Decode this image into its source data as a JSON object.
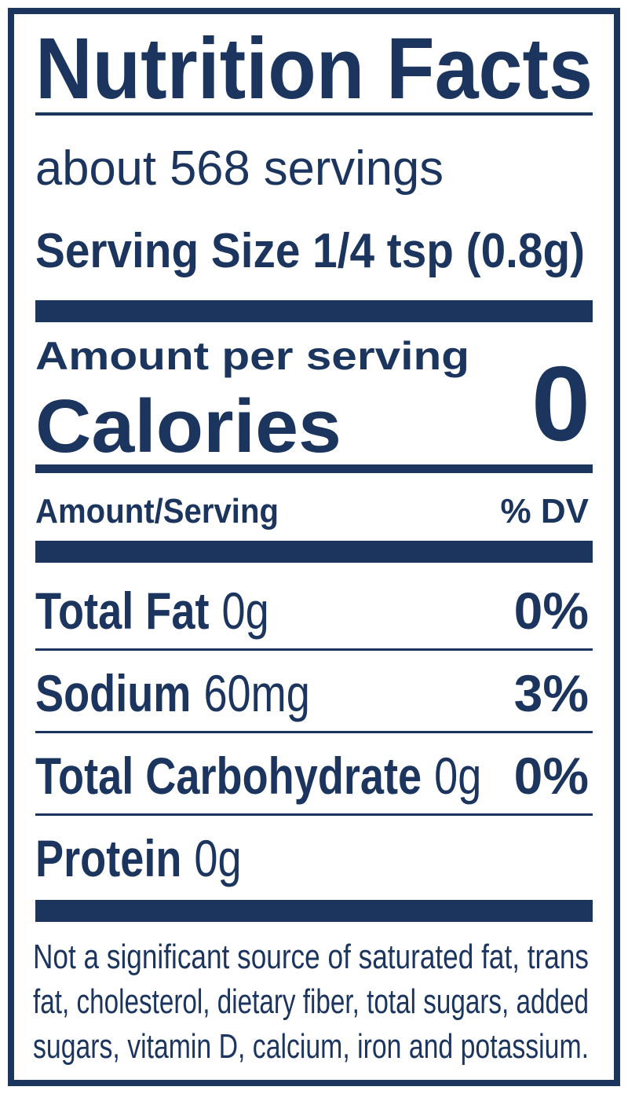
{
  "title": "Nutrition Facts",
  "servings": "about 568 servings",
  "serving_size": "Serving Size 1/4 tsp (0.8g)",
  "amount_per_serving": "Amount per serving",
  "calories": {
    "label": "Calories",
    "value": "0"
  },
  "columns": {
    "left": "Amount/Serving",
    "right": "% DV"
  },
  "nutrients": [
    {
      "name": "Total Fat",
      "amount": "0g",
      "dv": "0%"
    },
    {
      "name": "Sodium",
      "amount": "60mg",
      "dv": "3%"
    },
    {
      "name": "Total Carbohydrate",
      "amount": "0g",
      "dv": "0%"
    },
    {
      "name": "Protein",
      "amount": "0g"
    }
  ],
  "footnote": [
    "Not a significant source of saturated fat, trans",
    "fat, cholesterol, dietary fiber, total sugars, added",
    "sugars, vitamin D, calcium, iron and potassium."
  ]
}
